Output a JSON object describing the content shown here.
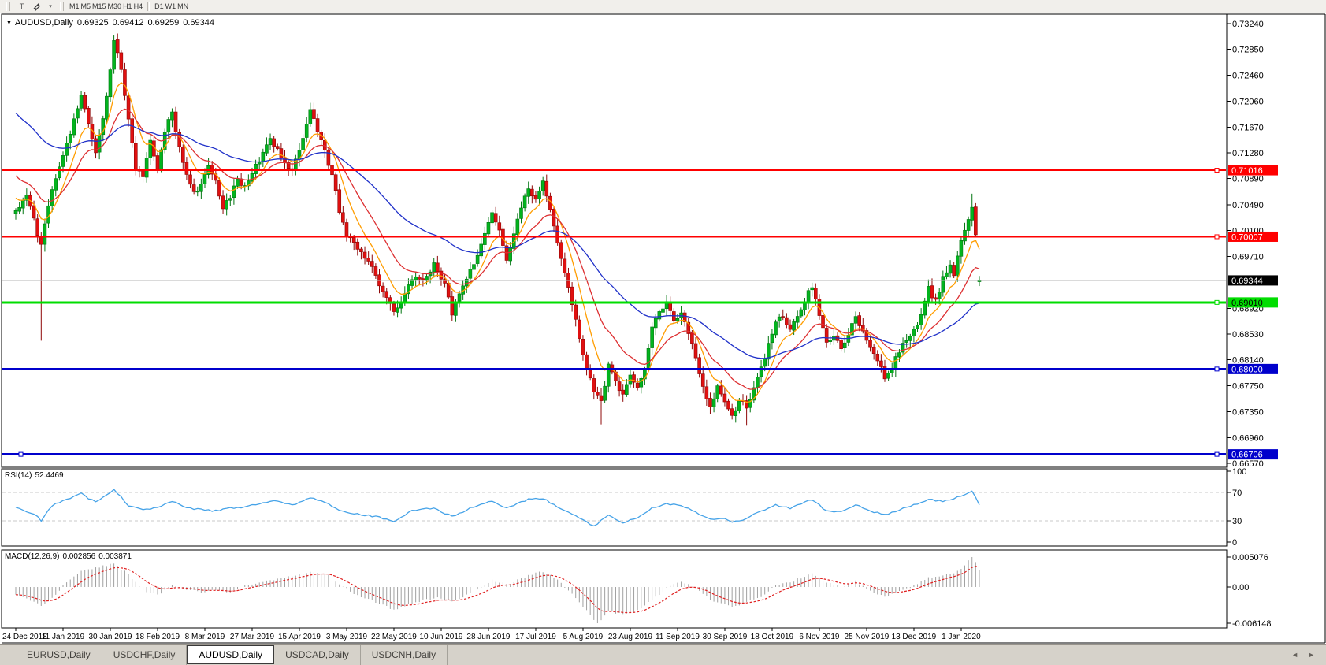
{
  "toolbar": {
    "text_tool": "T",
    "dropdown_caret": "▾",
    "timeframes": [
      "M1",
      "M5",
      "M15",
      "M30",
      "H1",
      "H4",
      "D1",
      "W1",
      "MN"
    ],
    "active_timeframe": "D1"
  },
  "chart": {
    "dropdown_marker": "▼",
    "symbol_title": "AUDUSD,Daily",
    "quote_open": "0.69325",
    "quote_high": "0.69412",
    "quote_low": "0.69259",
    "quote_close": "0.69344"
  },
  "tabs": {
    "scroll_left": "◄",
    "scroll_right": "►",
    "items": [
      {
        "label": "EURUSD,Daily",
        "active": false
      },
      {
        "label": "USDCHF,Daily",
        "active": false
      },
      {
        "label": "AUDUSD,Daily",
        "active": true
      },
      {
        "label": "USDCAD,Daily",
        "active": false
      },
      {
        "label": "USDCNH,Daily",
        "active": false
      }
    ]
  },
  "chart_data": {
    "type": "candlestick",
    "symbol": "AUDUSD",
    "timeframe": "Daily",
    "bars": 266,
    "price_axis_range": {
      "top": 0.7324,
      "bottom": 0.6657
    },
    "price_axis_ticks": [
      "0.73240",
      "0.72850",
      "0.72460",
      "0.72060",
      "0.71670",
      "0.71280",
      "0.70890",
      "0.70490",
      "0.70100",
      "0.69710",
      "0.68920",
      "0.68530",
      "0.68140",
      "0.67750",
      "0.67350",
      "0.66960",
      "0.66570"
    ],
    "date_labels": [
      "24 Dec 2018",
      "11 Jan 2019",
      "30 Jan 2019",
      "18 Feb 2019",
      "8 Mar 2019",
      "27 Mar 2019",
      "15 Apr 2019",
      "3 May 2019",
      "22 May 2019",
      "10 Jun 2019",
      "28 Jun 2019",
      "17 Jul 2019",
      "5 Aug 2019",
      "23 Aug 2019",
      "11 Sep 2019",
      "30 Sep 2019",
      "18 Oct 2019",
      "6 Nov 2019",
      "25 Nov 2019",
      "13 Dec 2019",
      "1 Jan 2020"
    ],
    "bars_per_date_label": 13,
    "last_candle": {
      "open": 0.69325,
      "high": 0.69412,
      "low": 0.69259,
      "close": 0.69344
    },
    "close_path_anchors": [
      [
        0,
        0.704
      ],
      [
        3,
        0.7062
      ],
      [
        5,
        0.7028
      ],
      [
        6,
        0.7002
      ],
      [
        7,
        0.6992
      ],
      [
        9,
        0.7048
      ],
      [
        11,
        0.7088
      ],
      [
        13,
        0.7128
      ],
      [
        15,
        0.7158
      ],
      [
        18,
        0.7218
      ],
      [
        20,
        0.7172
      ],
      [
        22,
        0.7132
      ],
      [
        24,
        0.7182
      ],
      [
        26,
        0.7252
      ],
      [
        27,
        0.7298
      ],
      [
        28,
        0.7282
      ],
      [
        29,
        0.7255
      ],
      [
        31,
        0.7175
      ],
      [
        33,
        0.7105
      ],
      [
        35,
        0.7092
      ],
      [
        37,
        0.7148
      ],
      [
        39,
        0.7105
      ],
      [
        41,
        0.7158
      ],
      [
        43,
        0.7192
      ],
      [
        45,
        0.7135
      ],
      [
        47,
        0.7092
      ],
      [
        49,
        0.7068
      ],
      [
        51,
        0.7078
      ],
      [
        53,
        0.7112
      ],
      [
        55,
        0.7088
      ],
      [
        57,
        0.7042
      ],
      [
        59,
        0.7062
      ],
      [
        61,
        0.7088
      ],
      [
        63,
        0.7075
      ],
      [
        65,
        0.7098
      ],
      [
        67,
        0.7118
      ],
      [
        70,
        0.7152
      ],
      [
        73,
        0.7122
      ],
      [
        76,
        0.7102
      ],
      [
        79,
        0.7148
      ],
      [
        81,
        0.7192
      ],
      [
        83,
        0.7162
      ],
      [
        85,
        0.7128
      ],
      [
        87,
        0.7095
      ],
      [
        89,
        0.7038
      ],
      [
        91,
        0.7002
      ],
      [
        93,
        0.6988
      ],
      [
        96,
        0.6972
      ],
      [
        99,
        0.6942
      ],
      [
        102,
        0.6905
      ],
      [
        104,
        0.6885
      ],
      [
        106,
        0.6902
      ],
      [
        109,
        0.6938
      ],
      [
        112,
        0.6932
      ],
      [
        115,
        0.6958
      ],
      [
        118,
        0.6928
      ],
      [
        120,
        0.6885
      ],
      [
        123,
        0.6928
      ],
      [
        126,
        0.6962
      ],
      [
        129,
        0.7002
      ],
      [
        131,
        0.7038
      ],
      [
        133,
        0.7012
      ],
      [
        135,
        0.6968
      ],
      [
        137,
        0.7002
      ],
      [
        139,
        0.7048
      ],
      [
        141,
        0.7072
      ],
      [
        143,
        0.7058
      ],
      [
        145,
        0.7082
      ],
      [
        147,
        0.7042
      ],
      [
        149,
        0.6992
      ],
      [
        151,
        0.6942
      ],
      [
        153,
        0.6898
      ],
      [
        155,
        0.6848
      ],
      [
        157,
        0.6802
      ],
      [
        159,
        0.6768
      ],
      [
        161,
        0.6748
      ],
      [
        163,
        0.6808
      ],
      [
        165,
        0.6782
      ],
      [
        167,
        0.6758
      ],
      [
        169,
        0.6788
      ],
      [
        171,
        0.6772
      ],
      [
        173,
        0.6798
      ],
      [
        175,
        0.6862
      ],
      [
        177,
        0.6888
      ],
      [
        179,
        0.6898
      ],
      [
        181,
        0.6872
      ],
      [
        183,
        0.6882
      ],
      [
        185,
        0.6858
      ],
      [
        187,
        0.6815
      ],
      [
        189,
        0.6772
      ],
      [
        191,
        0.6738
      ],
      [
        193,
        0.6772
      ],
      [
        195,
        0.6748
      ],
      [
        197,
        0.6728
      ],
      [
        199,
        0.6752
      ],
      [
        201,
        0.6742
      ],
      [
        203,
        0.6772
      ],
      [
        205,
        0.6802
      ],
      [
        207,
        0.6838
      ],
      [
        209,
        0.6868
      ],
      [
        211,
        0.6882
      ],
      [
        213,
        0.6858
      ],
      [
        215,
        0.6878
      ],
      [
        217,
        0.6902
      ],
      [
        219,
        0.6928
      ],
      [
        221,
        0.6882
      ],
      [
        223,
        0.6838
      ],
      [
        225,
        0.6852
      ],
      [
        227,
        0.6828
      ],
      [
        229,
        0.6852
      ],
      [
        231,
        0.6878
      ],
      [
        233,
        0.6862
      ],
      [
        235,
        0.6832
      ],
      [
        237,
        0.6812
      ],
      [
        239,
        0.6788
      ],
      [
        241,
        0.6802
      ],
      [
        243,
        0.6828
      ],
      [
        245,
        0.6842
      ],
      [
        247,
        0.6858
      ],
      [
        249,
        0.6882
      ],
      [
        251,
        0.6922
      ],
      [
        253,
        0.6902
      ],
      [
        255,
        0.6938
      ],
      [
        257,
        0.6962
      ],
      [
        258,
        0.6942
      ],
      [
        259,
        0.6968
      ],
      [
        260,
        0.6992
      ],
      [
        261,
        0.7012
      ],
      [
        262,
        0.7028
      ],
      [
        263,
        0.7042
      ],
      [
        264,
        0.7002
      ],
      [
        265,
        0.69344
      ]
    ],
    "candle_overrides": {
      "7": {
        "low": 0.6843
      },
      "27": {
        "high": 0.7306
      },
      "161": {
        "low": 0.6716
      },
      "201": {
        "low": 0.6714
      },
      "263": {
        "high": 0.7066
      },
      "265": {
        "open": 0.69325,
        "high": 0.69412,
        "low": 0.69259,
        "close": 0.69344
      }
    },
    "levels": [
      {
        "name": "resistance-line-1",
        "price": 0.71016,
        "label": "0.71016",
        "line": "#ff0000",
        "width": 2,
        "label_bg": "#ff0000",
        "label_fg": "#ffffff"
      },
      {
        "name": "resistance-line-2",
        "price": 0.70007,
        "label": "0.70007",
        "line": "#ff0000",
        "width": 2,
        "label_bg": "#ff0000",
        "label_fg": "#ffffff"
      },
      {
        "name": "support-line-green",
        "price": 0.6901,
        "label": "0.69010",
        "line": "#00dd00",
        "width": 3,
        "label_bg": "#00dd00",
        "label_fg": "#000000"
      },
      {
        "name": "support-line-blue-1",
        "price": 0.68,
        "label": "0.68000",
        "line": "#0000cc",
        "width": 3,
        "label_bg": "#0000cc",
        "label_fg": "#ffffff"
      },
      {
        "name": "support-line-blue-2",
        "price": 0.66706,
        "label": "0.66706",
        "line": "#0000cc",
        "width": 3,
        "label_bg": "#0000cc",
        "label_fg": "#ffffff",
        "left_handle": true
      }
    ],
    "current_price_line": {
      "price": 0.69344,
      "label": "0.69344",
      "line": "#b4b4b4",
      "label_bg": "#000000",
      "label_fg": "#ffffff"
    },
    "moving_averages": [
      {
        "name": "ma-fast-orange",
        "period": 8,
        "color": "#ff9d00"
      },
      {
        "name": "ma-mid-red",
        "period": 18,
        "color": "#dd3032"
      },
      {
        "name": "ma-slow-blue",
        "period": 50,
        "color": "#2031c9"
      }
    ],
    "ma_prehistory_start": 0.745,
    "colors": {
      "up": "#02b41e",
      "up_dark": "#017510",
      "down": "#e01010",
      "down_dark": "#8e0707",
      "histogram": "#a0a0a0",
      "signal": "#e02020",
      "rsi": "#46a3e8",
      "grid_dash": "#c8c8c8"
    },
    "rsi": {
      "label": "RSI(14)",
      "value": "52.4469",
      "axis_ticks": [
        "100",
        "70",
        "30",
        "0"
      ],
      "range": [
        0,
        100
      ],
      "upper_level": 70,
      "lower_level": 30,
      "anchors": [
        [
          0,
          48
        ],
        [
          5,
          40
        ],
        [
          7,
          30
        ],
        [
          10,
          52
        ],
        [
          14,
          60
        ],
        [
          18,
          68
        ],
        [
          22,
          56
        ],
        [
          27,
          74
        ],
        [
          31,
          52
        ],
        [
          35,
          46
        ],
        [
          39,
          48
        ],
        [
          43,
          58
        ],
        [
          47,
          48
        ],
        [
          51,
          46
        ],
        [
          55,
          44
        ],
        [
          59,
          48
        ],
        [
          63,
          50
        ],
        [
          67,
          54
        ],
        [
          71,
          58
        ],
        [
          76,
          52
        ],
        [
          81,
          62
        ],
        [
          85,
          56
        ],
        [
          89,
          44
        ],
        [
          93,
          40
        ],
        [
          99,
          36
        ],
        [
          104,
          30
        ],
        [
          109,
          44
        ],
        [
          115,
          48
        ],
        [
          120,
          36
        ],
        [
          126,
          50
        ],
        [
          131,
          58
        ],
        [
          135,
          48
        ],
        [
          141,
          60
        ],
        [
          145,
          62
        ],
        [
          149,
          50
        ],
        [
          153,
          40
        ],
        [
          157,
          28
        ],
        [
          159,
          22
        ],
        [
          163,
          38
        ],
        [
          167,
          28
        ],
        [
          171,
          34
        ],
        [
          175,
          48
        ],
        [
          179,
          54
        ],
        [
          183,
          52
        ],
        [
          187,
          42
        ],
        [
          191,
          32
        ],
        [
          195,
          33
        ],
        [
          197,
          28
        ],
        [
          201,
          33
        ],
        [
          205,
          44
        ],
        [
          209,
          52
        ],
        [
          213,
          48
        ],
        [
          217,
          56
        ],
        [
          219,
          60
        ],
        [
          223,
          44
        ],
        [
          227,
          42
        ],
        [
          231,
          52
        ],
        [
          235,
          44
        ],
        [
          239,
          38
        ],
        [
          243,
          46
        ],
        [
          247,
          52
        ],
        [
          251,
          60
        ],
        [
          255,
          58
        ],
        [
          257,
          60
        ],
        [
          259,
          63
        ],
        [
          261,
          68
        ],
        [
          263,
          73
        ],
        [
          264,
          62
        ],
        [
          265,
          52.45
        ]
      ]
    },
    "macd": {
      "label": "MACD(12,26,9)",
      "value_macd": "0.002856",
      "value_signal": "0.003871",
      "axis_ticks": [
        "0.005076",
        "0.00",
        "-0.006148"
      ],
      "axis_max": 0.005076,
      "axis_min": -0.006148,
      "anchors": [
        [
          0,
          -0.0012
        ],
        [
          4,
          -0.0022
        ],
        [
          7,
          -0.0032
        ],
        [
          10,
          -0.0018
        ],
        [
          14,
          0.0008
        ],
        [
          18,
          0.0028
        ],
        [
          23,
          0.0034
        ],
        [
          27,
          0.004
        ],
        [
          31,
          0.0022
        ],
        [
          35,
          -0.0006
        ],
        [
          39,
          -0.0014
        ],
        [
          43,
          0.0002
        ],
        [
          47,
          -0.0004
        ],
        [
          51,
          -0.0008
        ],
        [
          55,
          -0.0006
        ],
        [
          59,
          -0.001
        ],
        [
          63,
          0.0002
        ],
        [
          67,
          0.0008
        ],
        [
          73,
          0.0014
        ],
        [
          81,
          0.0026
        ],
        [
          85,
          0.0024
        ],
        [
          89,
          0.0006
        ],
        [
          93,
          -0.0012
        ],
        [
          99,
          -0.0026
        ],
        [
          104,
          -0.0038
        ],
        [
          109,
          -0.0028
        ],
        [
          115,
          -0.0018
        ],
        [
          120,
          -0.0024
        ],
        [
          126,
          -0.0008
        ],
        [
          131,
          0.0012
        ],
        [
          135,
          0.0004
        ],
        [
          141,
          0.002
        ],
        [
          145,
          0.0026
        ],
        [
          149,
          0.0012
        ],
        [
          153,
          -0.0012
        ],
        [
          157,
          -0.004
        ],
        [
          160,
          -0.006148
        ],
        [
          163,
          -0.0042
        ],
        [
          167,
          -0.0046
        ],
        [
          171,
          -0.004
        ],
        [
          175,
          -0.0022
        ],
        [
          179,
          -0.0002
        ],
        [
          183,
          0.001
        ],
        [
          187,
          -0.0002
        ],
        [
          191,
          -0.0022
        ],
        [
          195,
          -0.0028
        ],
        [
          197,
          -0.0036
        ],
        [
          201,
          -0.0026
        ],
        [
          205,
          -0.0018
        ],
        [
          209,
          0.0002
        ],
        [
          213,
          0.0008
        ],
        [
          217,
          0.0018
        ],
        [
          219,
          0.0024
        ],
        [
          223,
          0.0008
        ],
        [
          227,
          0.0
        ],
        [
          231,
          0.001
        ],
        [
          235,
          -0.0006
        ],
        [
          239,
          -0.0016
        ],
        [
          243,
          -0.0008
        ],
        [
          247,
          0.0002
        ],
        [
          251,
          0.0016
        ],
        [
          255,
          0.002
        ],
        [
          258,
          0.0024
        ],
        [
          260,
          0.0032
        ],
        [
          262,
          0.0044
        ],
        [
          263,
          0.005076
        ],
        [
          264,
          0.0042
        ],
        [
          265,
          0.002856
        ]
      ],
      "exact": {
        "160": -0.006148,
        "263": 0.005076,
        "265": 0.002856
      }
    }
  }
}
